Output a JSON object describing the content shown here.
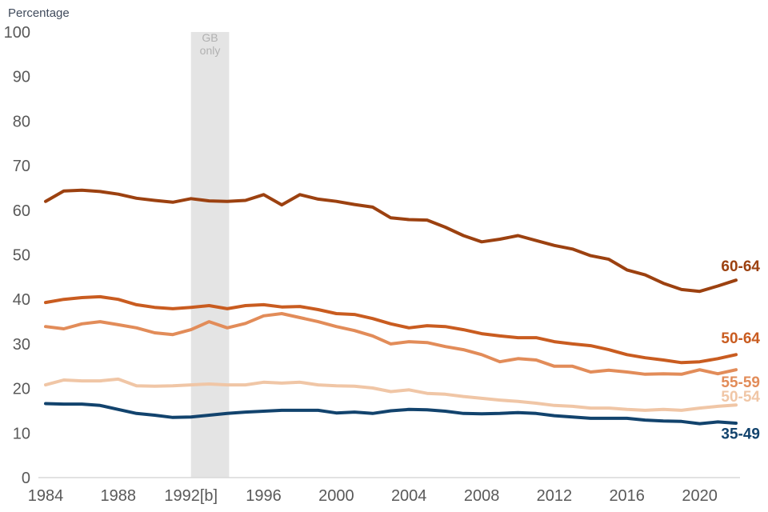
{
  "chart_data": {
    "type": "line",
    "ylabel": "Percentage",
    "ylim": [
      0,
      100
    ],
    "ytick_step": 10,
    "xlim": [
      1984,
      2022
    ],
    "xticks": [
      1984,
      1988,
      1992,
      1996,
      2000,
      2004,
      2008,
      2012,
      2016,
      2020
    ],
    "xtick_labels": [
      "1984",
      "1988",
      "1992[b]",
      "1996",
      "2000",
      "2004",
      "2008",
      "2012",
      "2016",
      "2020"
    ],
    "grid": false,
    "legend": "direct-line-end-labels",
    "annotation_band": {
      "label": "GB only",
      "label_lines": [
        "GB",
        "only"
      ],
      "from_year": 1992,
      "to_year": 1994.1,
      "fill": "#E4E4E4",
      "text_color": "#B1B1B1"
    },
    "x": [
      1984,
      1985,
      1986,
      1987,
      1988,
      1989,
      1990,
      1991,
      1992,
      1993,
      1994,
      1995,
      1996,
      1997,
      1998,
      1999,
      2000,
      2001,
      2002,
      2003,
      2004,
      2005,
      2006,
      2007,
      2008,
      2009,
      2010,
      2011,
      2012,
      2013,
      2014,
      2015,
      2016,
      2017,
      2018,
      2019,
      2020,
      2021,
      2022
    ],
    "series": [
      {
        "name": "60-64",
        "color": "#9C4110",
        "values": [
          62.0,
          64.3,
          64.5,
          64.2,
          63.6,
          62.7,
          62.2,
          61.8,
          62.6,
          62.1,
          62.0,
          62.2,
          63.5,
          61.2,
          63.5,
          62.5,
          62.0,
          61.3,
          60.7,
          58.3,
          57.9,
          57.8,
          56.2,
          54.3,
          52.9,
          53.5,
          54.3,
          53.2,
          52.1,
          51.3,
          49.8,
          49.0,
          46.6,
          45.5,
          43.6,
          42.2,
          41.8,
          43.0,
          44.3
        ]
      },
      {
        "name": "50-64",
        "color": "#C95C20",
        "values": [
          39.3,
          40.0,
          40.4,
          40.6,
          40.0,
          38.8,
          38.2,
          37.9,
          38.2,
          38.6,
          37.9,
          38.6,
          38.8,
          38.3,
          38.4,
          37.7,
          36.8,
          36.6,
          35.7,
          34.5,
          33.6,
          34.1,
          33.9,
          33.2,
          32.3,
          31.8,
          31.4,
          31.4,
          30.5,
          30.0,
          29.6,
          28.7,
          27.6,
          26.9,
          26.4,
          25.8,
          26.0,
          26.7,
          27.6
        ]
      },
      {
        "name": "55-59",
        "color": "#E28C59",
        "values": [
          33.9,
          33.4,
          34.5,
          35.0,
          34.3,
          33.6,
          32.5,
          32.1,
          33.2,
          35.0,
          33.6,
          34.6,
          36.3,
          36.8,
          35.9,
          35.0,
          33.9,
          33.0,
          31.8,
          30.0,
          30.5,
          30.3,
          29.4,
          28.7,
          27.6,
          26.0,
          26.7,
          26.4,
          25.0,
          25.0,
          23.7,
          24.1,
          23.7,
          23.2,
          23.3,
          23.2,
          24.2,
          23.3,
          24.2
        ]
      },
      {
        "name": "50-54",
        "color": "#F0C6A6",
        "values": [
          20.8,
          21.9,
          21.7,
          21.7,
          22.1,
          20.6,
          20.5,
          20.6,
          20.8,
          21.0,
          20.8,
          20.8,
          21.4,
          21.2,
          21.4,
          20.8,
          20.6,
          20.5,
          20.1,
          19.3,
          19.7,
          18.9,
          18.7,
          18.2,
          17.8,
          17.4,
          17.1,
          16.7,
          16.2,
          16.0,
          15.6,
          15.6,
          15.3,
          15.1,
          15.3,
          15.1,
          15.6,
          16.0,
          16.3
        ]
      },
      {
        "name": "35-49",
        "color": "#12436D",
        "values": [
          16.6,
          16.5,
          16.5,
          16.2,
          15.3,
          14.4,
          14.0,
          13.5,
          13.6,
          14.0,
          14.4,
          14.7,
          14.9,
          15.1,
          15.1,
          15.1,
          14.5,
          14.7,
          14.4,
          15.0,
          15.3,
          15.2,
          14.9,
          14.4,
          14.3,
          14.4,
          14.6,
          14.4,
          13.9,
          13.6,
          13.3,
          13.3,
          13.3,
          12.9,
          12.7,
          12.6,
          12.1,
          12.5,
          12.2
        ]
      }
    ],
    "colors": {
      "axis_text": "#595959",
      "axis_line": "#D9D9D9",
      "ylabel_text": "#404B5C"
    }
  }
}
